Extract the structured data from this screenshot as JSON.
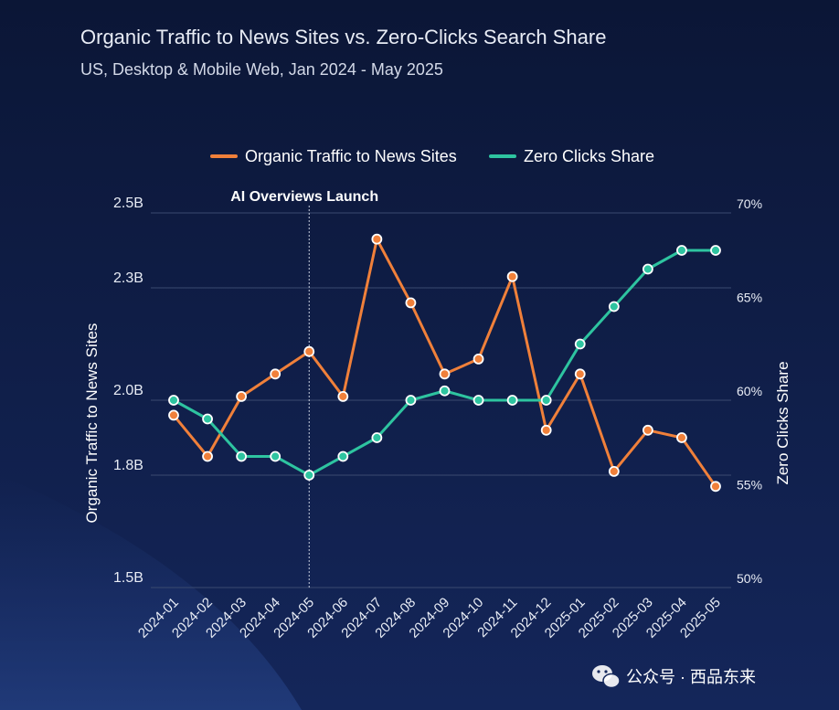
{
  "watermark": {
    "icon": "wechat-icon",
    "text": "公众号 · 西品东来"
  },
  "chart_data": {
    "type": "line",
    "title": "Organic Traffic to News Sites vs. Zero-Clicks Search Share",
    "subtitle": "US, Desktop & Mobile Web, Jan 2024 - May 2025",
    "categories": [
      "2024-01",
      "2024-02",
      "2024-03",
      "2024-04",
      "2024-05",
      "2024-06",
      "2024-07",
      "2024-08",
      "2024-09",
      "2024-10",
      "2024-11",
      "2024-12",
      "2025-01",
      "2025-02",
      "2025-03",
      "2025-04",
      "2025-05"
    ],
    "series": [
      {
        "name": "Organic Traffic to News Sites",
        "axis": "left",
        "color": "#f0803a",
        "values": [
          1.96,
          1.85,
          2.01,
          2.07,
          2.13,
          2.01,
          2.43,
          2.26,
          2.07,
          2.11,
          2.33,
          1.92,
          2.07,
          1.81,
          1.92,
          1.9,
          1.77
        ]
      },
      {
        "name": "Zero Clicks Share",
        "axis": "right",
        "color": "#2ec4a0",
        "values": [
          60,
          59,
          57,
          57,
          56,
          57,
          58,
          60,
          60.5,
          60,
          60,
          60,
          63,
          65,
          67,
          68,
          68
        ]
      }
    ],
    "y_left": {
      "label": "Organic Traffic to News Sites",
      "ticks": [
        "2.5B",
        "2.3B",
        "2.0B",
        "1.8B",
        "1.5B"
      ],
      "tick_values": [
        2.5,
        2.3,
        2.0,
        1.8,
        1.5
      ],
      "range": [
        1.5,
        2.5
      ]
    },
    "y_right": {
      "label": "Zero Clicks Share",
      "ticks": [
        "70%",
        "65%",
        "60%",
        "55%",
        "50%"
      ],
      "tick_values": [
        70,
        65,
        60,
        55,
        50
      ],
      "range": [
        50,
        70
      ]
    },
    "annotation": {
      "text": "AI Overviews Launch",
      "category": "2024-05"
    },
    "grid": true,
    "legend_position": "top-center"
  }
}
